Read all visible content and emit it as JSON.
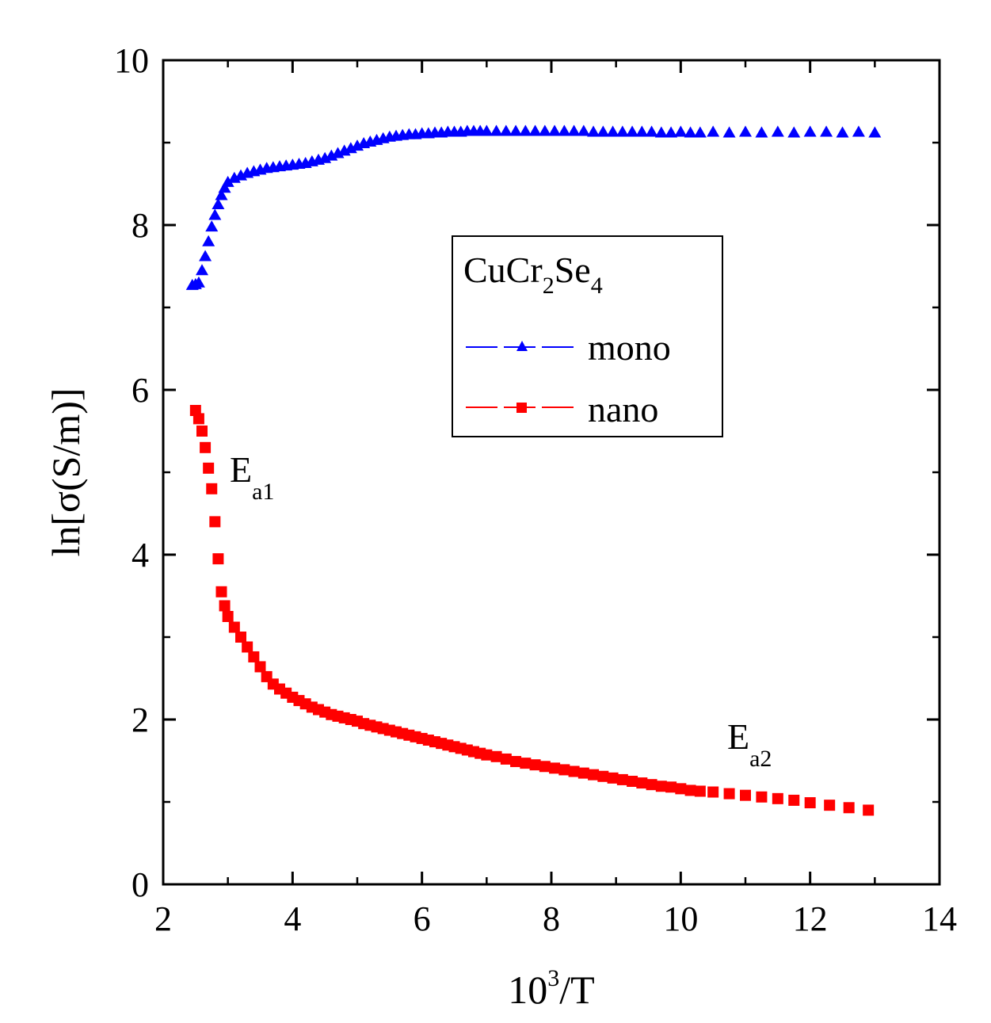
{
  "chart_data": {
    "type": "scatter",
    "title": "",
    "xlabel": {
      "base": "10",
      "sup": "3",
      "rest": "/T"
    },
    "ylabel": "ln[σ(S/m)]",
    "xlim": [
      2,
      14
    ],
    "ylim": [
      0,
      10
    ],
    "xticks": [
      "2",
      "4",
      "6",
      "8",
      "10",
      "12",
      "14"
    ],
    "yticks": [
      "0",
      "2",
      "4",
      "6",
      "8",
      "10"
    ],
    "grid": false,
    "legend": {
      "position": "upper-middle",
      "title": {
        "p1": "CuCr",
        "s1": "2",
        "p2": "Se",
        "s2": "4"
      },
      "entries": [
        {
          "label": "mono",
          "marker": "triangle",
          "color": "#0000ff"
        },
        {
          "label": "nano",
          "marker": "square",
          "color": "#ff0000"
        }
      ]
    },
    "annotations": [
      {
        "main": "E",
        "sub": "a1",
        "x": 3.1,
        "y": 5.05
      },
      {
        "main": "E",
        "sub": "a2",
        "x": 10.6,
        "y": 1.6
      }
    ],
    "series": [
      {
        "name": "mono",
        "color": "#0000ff",
        "marker": "triangle",
        "x": [
          2.45,
          2.5,
          2.55,
          2.6,
          2.65,
          2.7,
          2.75,
          2.8,
          2.85,
          2.9,
          2.95,
          3.0,
          3.1,
          3.2,
          3.3,
          3.4,
          3.5,
          3.6,
          3.7,
          3.8,
          3.9,
          4.0,
          4.1,
          4.2,
          4.3,
          4.4,
          4.5,
          4.6,
          4.7,
          4.8,
          4.9,
          5.0,
          5.1,
          5.2,
          5.3,
          5.4,
          5.5,
          5.6,
          5.7,
          5.8,
          5.9,
          6.0,
          6.1,
          6.2,
          6.3,
          6.4,
          6.5,
          6.6,
          6.7,
          6.8,
          6.9,
          7.0,
          7.15,
          7.3,
          7.45,
          7.6,
          7.75,
          7.9,
          8.05,
          8.2,
          8.35,
          8.5,
          8.65,
          8.8,
          8.95,
          9.1,
          9.25,
          9.4,
          9.55,
          9.7,
          9.85,
          10.0,
          10.15,
          10.3,
          10.5,
          10.75,
          11.0,
          11.25,
          11.5,
          11.75,
          12.0,
          12.25,
          12.5,
          12.75,
          13.0
        ],
        "y": [
          7.27,
          7.28,
          7.3,
          7.45,
          7.62,
          7.8,
          7.98,
          8.12,
          8.25,
          8.36,
          8.45,
          8.52,
          8.57,
          8.6,
          8.63,
          8.65,
          8.67,
          8.69,
          8.7,
          8.71,
          8.72,
          8.73,
          8.74,
          8.75,
          8.77,
          8.79,
          8.81,
          8.84,
          8.87,
          8.9,
          8.93,
          8.96,
          8.99,
          9.01,
          9.03,
          9.05,
          9.07,
          9.08,
          9.09,
          9.1,
          9.1,
          9.11,
          9.11,
          9.12,
          9.12,
          9.13,
          9.13,
          9.13,
          9.14,
          9.14,
          9.14,
          9.14,
          9.14,
          9.14,
          9.14,
          9.14,
          9.14,
          9.14,
          9.14,
          9.14,
          9.14,
          9.14,
          9.13,
          9.13,
          9.13,
          9.13,
          9.13,
          9.13,
          9.13,
          9.12,
          9.12,
          9.13,
          9.12,
          9.12,
          9.13,
          9.12,
          9.13,
          9.12,
          9.13,
          9.12,
          9.13,
          9.13,
          9.12,
          9.13,
          9.12
        ]
      },
      {
        "name": "nano",
        "color": "#ff0000",
        "marker": "square",
        "x": [
          2.5,
          2.55,
          2.6,
          2.65,
          2.7,
          2.75,
          2.8,
          2.85,
          2.9,
          2.95,
          3.0,
          3.1,
          3.2,
          3.3,
          3.4,
          3.5,
          3.6,
          3.7,
          3.8,
          3.9,
          4.0,
          4.1,
          4.2,
          4.3,
          4.4,
          4.5,
          4.6,
          4.7,
          4.8,
          4.9,
          5.0,
          5.1,
          5.2,
          5.3,
          5.4,
          5.5,
          5.6,
          5.7,
          5.8,
          5.9,
          6.0,
          6.1,
          6.2,
          6.3,
          6.4,
          6.5,
          6.6,
          6.7,
          6.8,
          6.9,
          7.0,
          7.15,
          7.3,
          7.45,
          7.6,
          7.75,
          7.9,
          8.05,
          8.2,
          8.35,
          8.5,
          8.65,
          8.8,
          8.95,
          9.1,
          9.25,
          9.4,
          9.55,
          9.7,
          9.85,
          10.0,
          10.15,
          10.3,
          10.5,
          10.75,
          11.0,
          11.25,
          11.5,
          11.75,
          12.0,
          12.3,
          12.6,
          12.9
        ],
        "y": [
          5.75,
          5.65,
          5.5,
          5.3,
          5.05,
          4.8,
          4.4,
          3.95,
          3.55,
          3.38,
          3.25,
          3.12,
          3.0,
          2.88,
          2.76,
          2.64,
          2.52,
          2.43,
          2.37,
          2.32,
          2.27,
          2.23,
          2.19,
          2.15,
          2.12,
          2.09,
          2.06,
          2.04,
          2.02,
          2.0,
          1.98,
          1.95,
          1.93,
          1.91,
          1.89,
          1.87,
          1.85,
          1.83,
          1.81,
          1.79,
          1.77,
          1.75,
          1.73,
          1.71,
          1.69,
          1.67,
          1.65,
          1.63,
          1.61,
          1.59,
          1.57,
          1.55,
          1.52,
          1.49,
          1.47,
          1.45,
          1.43,
          1.41,
          1.39,
          1.37,
          1.35,
          1.33,
          1.31,
          1.29,
          1.27,
          1.25,
          1.23,
          1.21,
          1.19,
          1.18,
          1.16,
          1.14,
          1.13,
          1.12,
          1.1,
          1.08,
          1.06,
          1.04,
          1.02,
          0.99,
          0.96,
          0.93,
          0.9
        ]
      }
    ]
  }
}
